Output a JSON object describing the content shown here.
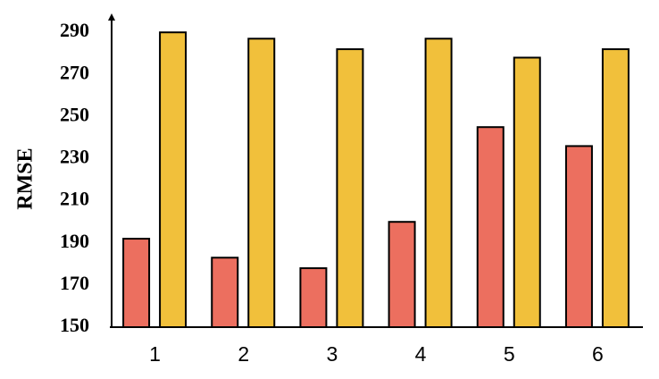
{
  "chart_data": {
    "type": "bar",
    "y_label": "RMSE",
    "categories": [
      "1",
      "2",
      "3",
      "4",
      "5",
      "6"
    ],
    "series": [
      {
        "color": "#ec6f5f",
        "values": [
          192,
          183,
          178,
          200,
          245,
          236
        ]
      },
      {
        "color": "#f1c03b",
        "values": [
          290,
          287,
          282,
          287,
          278,
          282
        ]
      }
    ],
    "ylim": [
      150,
      299
    ],
    "yticks": [
      150,
      170,
      190,
      210,
      230,
      250,
      270,
      290
    ],
    "grid": false
  }
}
